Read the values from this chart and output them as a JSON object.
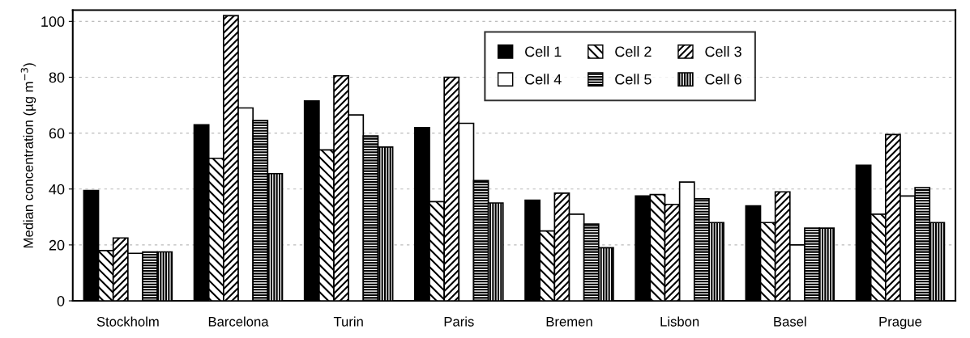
{
  "chart_data": {
    "type": "bar",
    "ylabel": "Median concentration (µg m$^{−3}$)",
    "categories": [
      "Stockholm",
      "Barcelona",
      "Turin",
      "Paris",
      "Bremen",
      "Lisbon",
      "Basel",
      "Prague"
    ],
    "series": [
      {
        "name": "Cell 1",
        "color": "#000000",
        "values": [
          39.5,
          63,
          71.5,
          62,
          36,
          37.5,
          34,
          48.5
        ]
      },
      {
        "name": "Cell 2",
        "color": "#000000",
        "values": [
          18,
          51,
          54,
          35.5,
          25,
          38,
          28,
          31
        ]
      },
      {
        "name": "Cell 3",
        "color": "#000000",
        "values": [
          22.5,
          102,
          80.5,
          80,
          38.5,
          34.5,
          39,
          59.5
        ]
      },
      {
        "name": "Cell 4",
        "color": "#ffffff",
        "values": [
          17,
          69,
          66.5,
          63.5,
          31,
          42.5,
          20,
          37.5
        ]
      },
      {
        "name": "Cell 5",
        "color": "#000000",
        "values": [
          17.5,
          64.5,
          59,
          43,
          27.5,
          36.5,
          26,
          40.5
        ]
      },
      {
        "name": "Cell 6",
        "color": "#000000",
        "values": [
          17.5,
          45.5,
          55,
          35,
          19,
          28,
          26,
          28
        ]
      }
    ],
    "ylim": [
      0,
      104
    ],
    "yticks": [
      0,
      20,
      40,
      60,
      80,
      100
    ],
    "grid": "y",
    "legend": "top"
  }
}
